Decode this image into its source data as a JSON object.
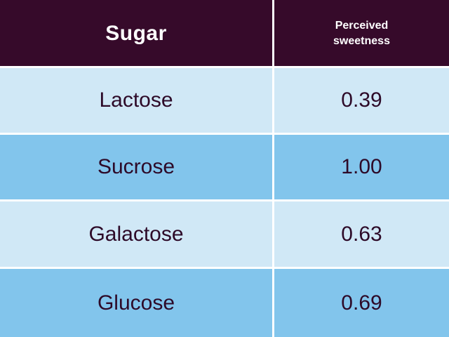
{
  "table": {
    "headers": [
      "Sugar",
      "Perceived\nsweetness"
    ],
    "rows": [
      {
        "sugar": "Lactose",
        "sweetness": "0.39"
      },
      {
        "sugar": "Sucrose",
        "sweetness": "1.00"
      },
      {
        "sugar": "Galactose",
        "sweetness": "0.63"
      },
      {
        "sugar": "Glucose",
        "sweetness": "0.69"
      }
    ]
  },
  "colors": {
    "header_bg": "#360a2a",
    "row_light": "#d0e8f6",
    "row_dark": "#82c5ec",
    "text_dark": "#2d0a28"
  }
}
